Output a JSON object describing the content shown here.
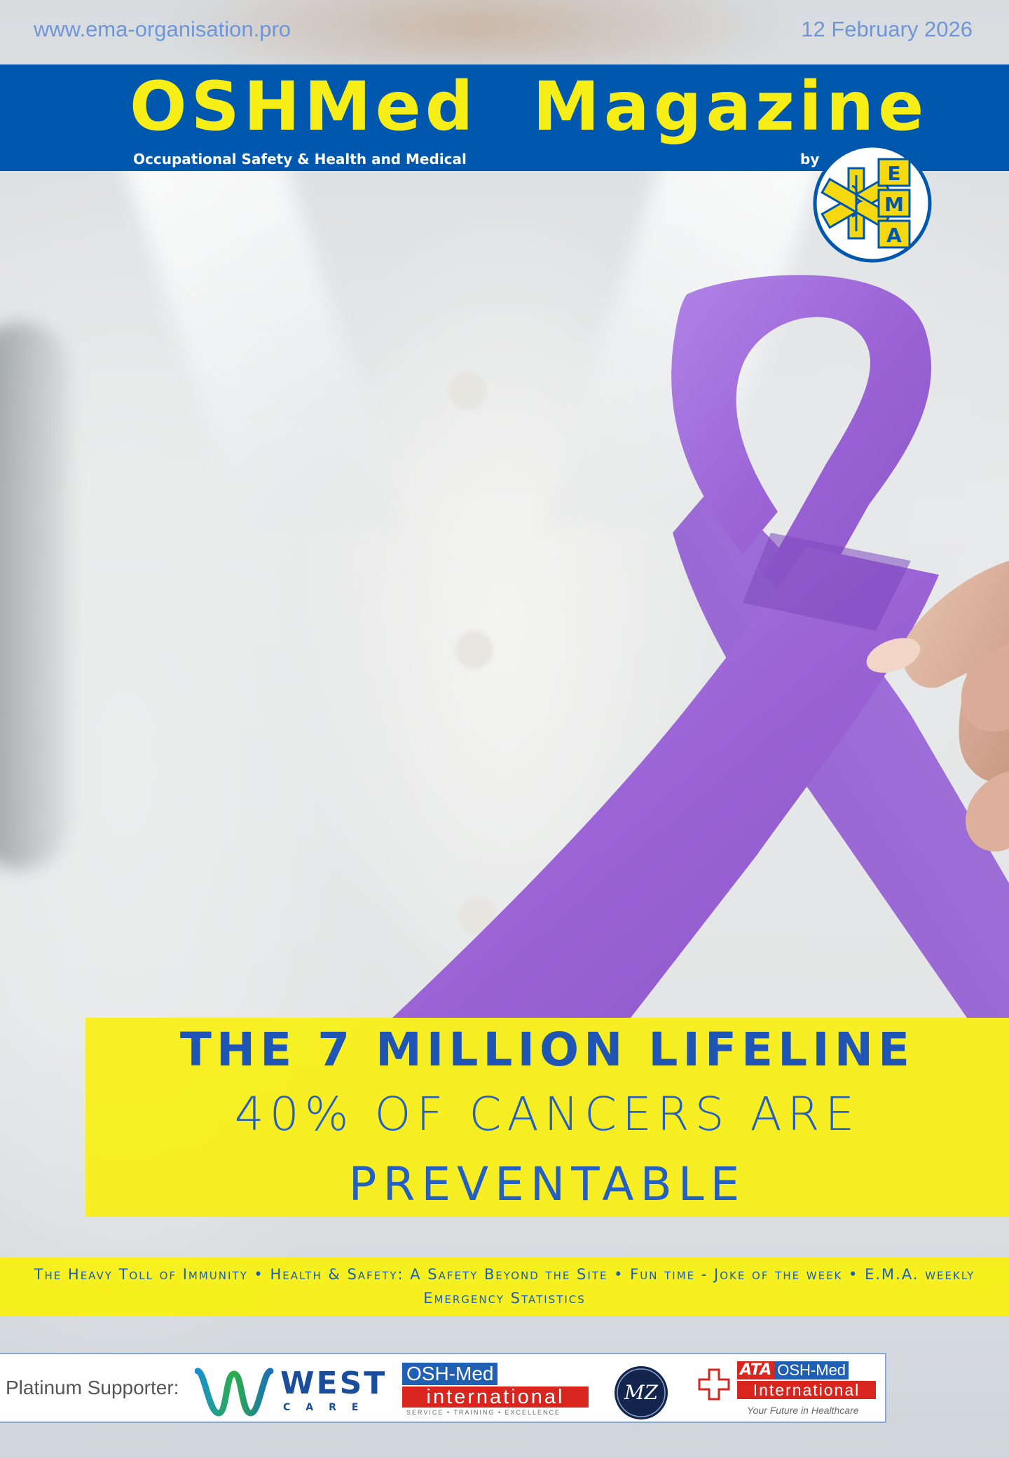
{
  "header": {
    "website": "www.ema-organisation.pro",
    "date": "12 February 2026",
    "magazine_title": "OSHMed  Magazine",
    "subtitle": "Occupational Safety & Health and Medical",
    "by_label": "by",
    "logo_letters": [
      "E",
      "M",
      "A"
    ]
  },
  "headline": {
    "line1": "THE 7 MILLION LIFELINE",
    "line2": "40% OF CANCERS ARE",
    "line3": "PREVENTABLE"
  },
  "topics_text": "The Heavy Toll of Immunity • Health & Safety: A Safety Beyond the Site • Fun time - Joke of the week • E.M.A. weekly Emergency Statistics",
  "supporters": {
    "label": "Platinum Supporter:",
    "westcare": {
      "word1": "WEST",
      "word2": "CARE"
    },
    "oshmed_intl": {
      "top": "OSH-Med",
      "middle": "international",
      "tagline": "SERVICE • TRAINING • EXCELLENCE"
    },
    "mz": {
      "text": "MZ"
    },
    "ata": {
      "ata": "ATA",
      "osh": "OSH-Med",
      "intl": "International",
      "tagline": "Your Future in Healthcare"
    }
  },
  "colors": {
    "banner_blue": "#0057ae",
    "title_yellow": "#f6ee16",
    "highlight_yellow": "#f9f014",
    "headline_blue": "#1f56b6",
    "ribbon_purple": "#9b63d6"
  }
}
